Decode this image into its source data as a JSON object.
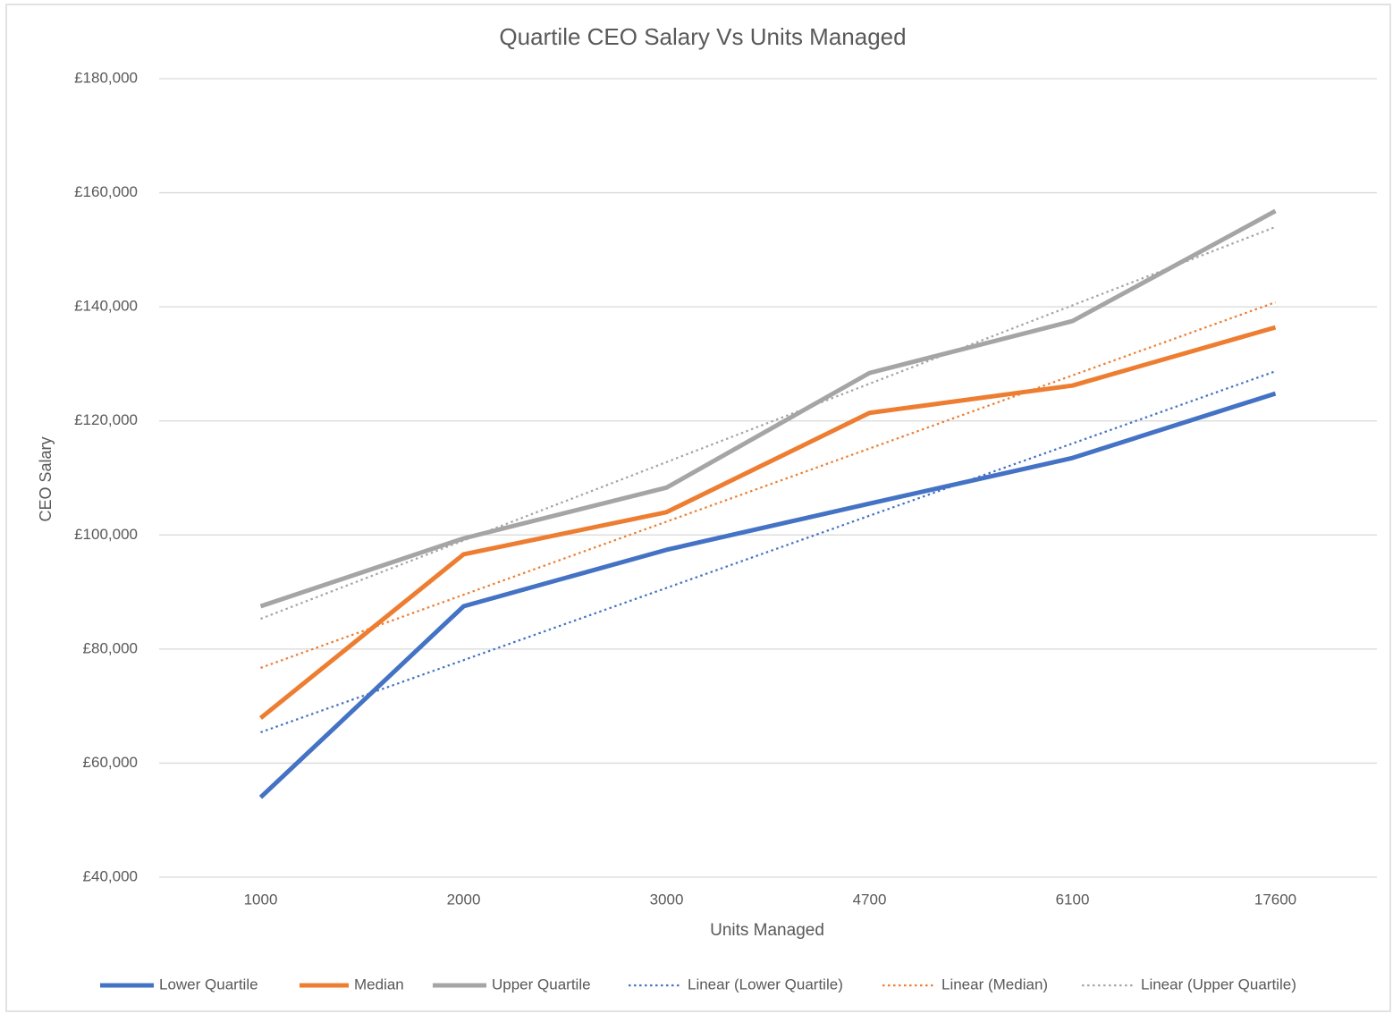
{
  "chart_data": {
    "type": "line",
    "title": "Quartile CEO Salary Vs Units Managed",
    "x_label": "Units Managed",
    "y_label": "CEO Salary",
    "categories": [
      "1000",
      "2000",
      "3000",
      "4700",
      "6100",
      "17600"
    ],
    "ylim": [
      40000,
      180000
    ],
    "yticks": [
      {
        "value": 40000,
        "label": "£40,000"
      },
      {
        "value": 60000,
        "label": "£60,000"
      },
      {
        "value": 80000,
        "label": "£80,000"
      },
      {
        "value": 100000,
        "label": "£100,000"
      },
      {
        "value": 120000,
        "label": "£120,000"
      },
      {
        "value": 140000,
        "label": "£140,000"
      },
      {
        "value": 160000,
        "label": "£160,000"
      },
      {
        "value": 180000,
        "label": "£180,000"
      }
    ],
    "grid": true,
    "legend": "bottom",
    "series": [
      {
        "name": "Lower Quartile",
        "color": "#4472c4",
        "line_style": "solid",
        "values": [
          54000,
          87500,
          97400,
          105500,
          113500,
          124800
        ]
      },
      {
        "name": "Median",
        "color": "#ed7d31",
        "line_style": "solid",
        "values": [
          67900,
          96600,
          104000,
          121400,
          126200,
          136400
        ]
      },
      {
        "name": "Upper Quartile",
        "color": "#a5a5a5",
        "line_style": "solid",
        "values": [
          87500,
          99400,
          108300,
          128400,
          137500,
          156800
        ]
      },
      {
        "name": "Linear (Lower Quartile)",
        "color": "#4472c4",
        "line_style": "dotted",
        "values": [
          65400,
          78060,
          90720,
          103380,
          116040,
          128700
        ]
      },
      {
        "name": "Linear (Median)",
        "color": "#ed7d31",
        "line_style": "dotted",
        "values": [
          76700,
          89520,
          102340,
          115160,
          127980,
          140800
        ]
      },
      {
        "name": "Linear (Upper Quartile)",
        "color": "#a5a5a5",
        "line_style": "dotted",
        "values": [
          85300,
          99040,
          112780,
          126520,
          140260,
          154000
        ]
      }
    ]
  }
}
